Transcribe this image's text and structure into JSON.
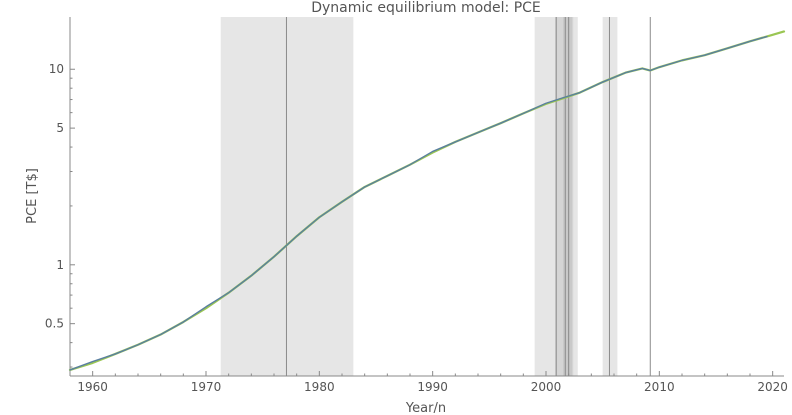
{
  "chart_data": {
    "type": "line",
    "title": "Dynamic equilibrium model: PCE",
    "xlabel": "Year/n",
    "ylabel": "PCE [T$]",
    "y_scale": "log",
    "xlim": [
      1958,
      2021
    ],
    "ylim": [
      0.27,
      18.5
    ],
    "x_ticks": [
      1960,
      1970,
      1980,
      1990,
      2000,
      2010,
      2020
    ],
    "x_tick_labels": [
      "1960",
      "1970",
      "1980",
      "1990",
      "2000",
      "2010",
      "2020"
    ],
    "y_ticks": [
      0.5,
      1,
      5,
      10
    ],
    "y_tick_labels": [
      "0.5",
      "1",
      "5",
      "10"
    ],
    "grid": false,
    "shaded_regions": [
      {
        "start": 1971.3,
        "end": 1983.0
      },
      {
        "start": 1999.0,
        "end": 2002.8
      },
      {
        "start": 2000.8,
        "end": 2002.4
      },
      {
        "start": 2001.5,
        "end": 2002.3
      },
      {
        "start": 2005.0,
        "end": 2006.3
      }
    ],
    "vertical_lines": [
      1977.1,
      2000.9,
      2001.7,
      2002.0,
      2005.6,
      2009.2
    ],
    "series": [
      {
        "color": "#5a7fa0",
        "x": [
          1958.0,
          1960.0,
          1962.0,
          1964.0,
          1966.0,
          1968.0,
          1970.0,
          1972.0,
          1974.0,
          1976.0,
          1978.0,
          1980.0,
          1982.0,
          1984.0,
          1986.0,
          1988.0,
          1990.0,
          1992.0,
          1994.0,
          1996.0,
          1998.0,
          2000.0,
          2001.5,
          2003.0,
          2005.0,
          2007.0,
          2008.5,
          2009.2,
          2010.0,
          2012.0,
          2014.0,
          2016.0,
          2018.0,
          2019.5
        ],
        "values": [
          0.29,
          0.32,
          0.35,
          0.39,
          0.44,
          0.51,
          0.61,
          0.72,
          0.88,
          1.1,
          1.4,
          1.75,
          2.1,
          2.5,
          2.85,
          3.25,
          3.8,
          4.25,
          4.75,
          5.3,
          5.95,
          6.7,
          7.15,
          7.6,
          8.6,
          9.6,
          10.1,
          9.85,
          10.25,
          11.1,
          11.8,
          12.8,
          13.9,
          14.7
        ]
      },
      {
        "color": "#9ac653",
        "x": [
          1958.0,
          1960.0,
          1962.0,
          1964.0,
          1966.0,
          1968.0,
          1970.0,
          1972.0,
          1974.0,
          1976.0,
          1978.0,
          1980.0,
          1982.0,
          1984.0,
          1986.0,
          1988.0,
          1990.0,
          1992.0,
          1994.0,
          1996.0,
          1998.0,
          2000.0,
          2001.5,
          2003.0,
          2005.0,
          2007.0,
          2008.5,
          2009.2,
          2010.0,
          2012.0,
          2014.0,
          2016.0,
          2018.0,
          2020.0,
          2021.0
        ],
        "values": [
          0.29,
          0.315,
          0.35,
          0.39,
          0.44,
          0.51,
          0.6,
          0.72,
          0.88,
          1.1,
          1.4,
          1.75,
          2.1,
          2.5,
          2.85,
          3.25,
          3.75,
          4.25,
          4.75,
          5.3,
          5.95,
          6.65,
          7.1,
          7.6,
          8.6,
          9.6,
          10.1,
          9.85,
          10.25,
          11.1,
          11.8,
          12.8,
          13.9,
          15.0,
          15.6
        ]
      }
    ]
  }
}
